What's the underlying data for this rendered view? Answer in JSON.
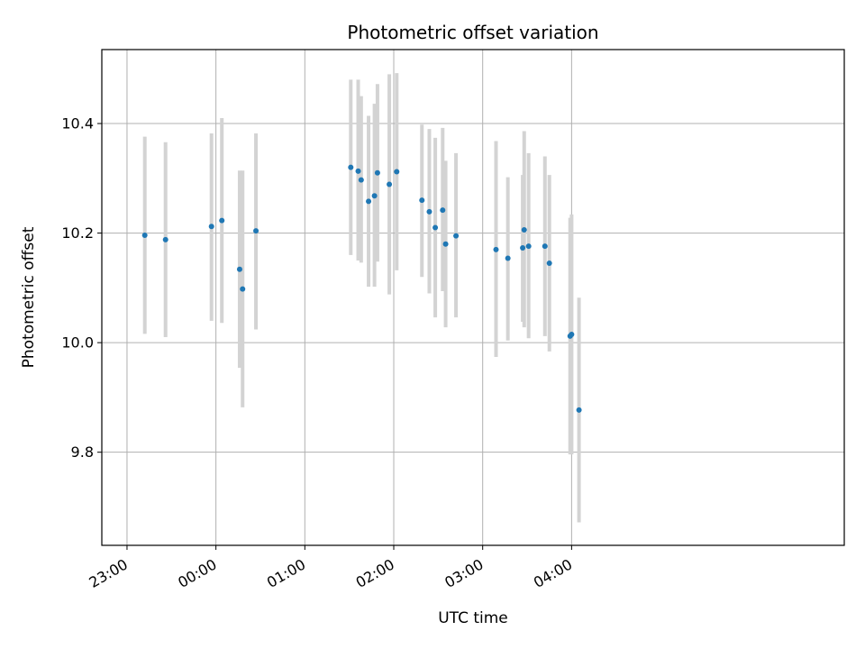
{
  "chart_data": {
    "type": "scatter",
    "title": "Photometric offset variation",
    "xlabel": "UTC time",
    "ylabel": "Photometric offset",
    "x_ticks": [
      "23:00",
      "00:00",
      "01:00",
      "02:00",
      "03:00",
      "04:00"
    ],
    "y_ticks": [
      "9.8",
      "10.0",
      "10.2",
      "10.4"
    ],
    "x_unit": "minutes relative to 00:00 UTC",
    "xlim": [
      -77,
      424
    ],
    "ylim": [
      9.63,
      10.535
    ],
    "grid": true,
    "point_color": "#1f77b4",
    "errorbar_color": "#d3d3d3",
    "series": [
      {
        "points": [
          {
            "x": -48,
            "y": 10.196,
            "lo": 10.016,
            "hi": 10.376
          },
          {
            "x": -34,
            "y": 10.188,
            "lo": 10.01,
            "hi": 10.366
          },
          {
            "x": -3,
            "y": 10.212,
            "lo": 10.04,
            "hi": 10.382
          },
          {
            "x": 4,
            "y": 10.223,
            "lo": 10.036,
            "hi": 10.41
          },
          {
            "x": 16,
            "y": 10.134,
            "lo": 9.954,
            "hi": 10.314
          },
          {
            "x": 18,
            "y": 10.098,
            "lo": 9.882,
            "hi": 10.314
          },
          {
            "x": 27,
            "y": 10.204,
            "lo": 10.024,
            "hi": 10.382
          },
          {
            "x": 91,
            "y": 10.32,
            "lo": 10.16,
            "hi": 10.48
          },
          {
            "x": 96,
            "y": 10.313,
            "lo": 10.15,
            "hi": 10.48
          },
          {
            "x": 98,
            "y": 10.297,
            "lo": 10.146,
            "hi": 10.45
          },
          {
            "x": 103,
            "y": 10.258,
            "lo": 10.102,
            "hi": 10.414
          },
          {
            "x": 107,
            "y": 10.268,
            "lo": 10.102,
            "hi": 10.436
          },
          {
            "x": 109,
            "y": 10.31,
            "lo": 10.148,
            "hi": 10.472
          },
          {
            "x": 117,
            "y": 10.289,
            "lo": 10.088,
            "hi": 10.49
          },
          {
            "x": 122,
            "y": 10.312,
            "lo": 10.132,
            "hi": 10.492
          },
          {
            "x": 139,
            "y": 10.26,
            "lo": 10.12,
            "hi": 10.398
          },
          {
            "x": 144,
            "y": 10.239,
            "lo": 10.09,
            "hi": 10.39
          },
          {
            "x": 148,
            "y": 10.21,
            "lo": 10.046,
            "hi": 10.374
          },
          {
            "x": 153,
            "y": 10.242,
            "lo": 10.094,
            "hi": 10.392
          },
          {
            "x": 155,
            "y": 10.18,
            "lo": 10.028,
            "hi": 10.332
          },
          {
            "x": 162,
            "y": 10.195,
            "lo": 10.046,
            "hi": 10.346
          },
          {
            "x": 189,
            "y": 10.17,
            "lo": 9.974,
            "hi": 10.368
          },
          {
            "x": 197,
            "y": 10.154,
            "lo": 10.004,
            "hi": 10.302
          },
          {
            "x": 207,
            "y": 10.173,
            "lo": 10.038,
            "hi": 10.306
          },
          {
            "x": 208,
            "y": 10.206,
            "lo": 10.028,
            "hi": 10.386
          },
          {
            "x": 211,
            "y": 10.176,
            "lo": 10.008,
            "hi": 10.346
          },
          {
            "x": 222,
            "y": 10.176,
            "lo": 10.012,
            "hi": 10.34
          },
          {
            "x": 225,
            "y": 10.145,
            "lo": 9.984,
            "hi": 10.306
          },
          {
            "x": 239,
            "y": 10.012,
            "lo": 9.796,
            "hi": 10.228
          },
          {
            "x": 240,
            "y": 10.015,
            "lo": 9.796,
            "hi": 10.234
          },
          {
            "x": 245,
            "y": 9.877,
            "lo": 9.672,
            "hi": 10.082
          }
        ]
      }
    ]
  }
}
